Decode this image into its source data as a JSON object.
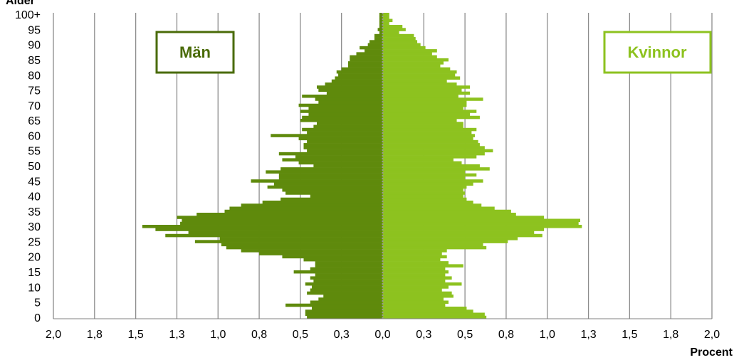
{
  "chart_data": {
    "type": "bar",
    "orientation": "horizontal",
    "subtype": "population-pyramid",
    "ylabel": "Ålder",
    "xlabel": "Procent",
    "x_tick_labels": [
      "2,0",
      "1,8",
      "1,5",
      "1,3",
      "1,0",
      "0,8",
      "0,5",
      "0,3",
      "0,0",
      "0,3",
      "0,5",
      "0,8",
      "1,0",
      "1,3",
      "1,5",
      "1,8",
      "2,0"
    ],
    "y_tick_labels": [
      "0",
      "5",
      "10",
      "15",
      "20",
      "25",
      "30",
      "35",
      "40",
      "45",
      "50",
      "55",
      "60",
      "65",
      "70",
      "75",
      "80",
      "85",
      "90",
      "95",
      "100+"
    ],
    "xlim": [
      -2.0,
      2.0
    ],
    "ages": [
      0,
      1,
      2,
      3,
      4,
      5,
      6,
      7,
      8,
      9,
      10,
      11,
      12,
      13,
      14,
      15,
      16,
      17,
      18,
      19,
      20,
      21,
      22,
      23,
      24,
      25,
      26,
      27,
      28,
      29,
      30,
      31,
      32,
      33,
      34,
      35,
      36,
      37,
      38,
      39,
      40,
      41,
      42,
      43,
      44,
      45,
      46,
      47,
      48,
      49,
      50,
      51,
      52,
      53,
      54,
      55,
      56,
      57,
      58,
      59,
      60,
      61,
      62,
      63,
      64,
      65,
      66,
      67,
      68,
      69,
      70,
      71,
      72,
      73,
      74,
      75,
      76,
      77,
      78,
      79,
      80,
      81,
      82,
      83,
      84,
      85,
      86,
      87,
      88,
      89,
      90,
      91,
      92,
      93,
      94,
      95,
      96,
      97,
      98,
      99,
      "100+"
    ],
    "grid": "vertical",
    "series": [
      {
        "name": "Män",
        "color": "#5f8a0c",
        "values": [
          0.46,
          0.47,
          0.47,
          0.43,
          0.59,
          0.44,
          0.39,
          0.36,
          0.46,
          0.44,
          0.43,
          0.47,
          0.42,
          0.44,
          0.41,
          0.54,
          0.44,
          0.41,
          0.41,
          0.48,
          0.61,
          0.75,
          0.86,
          0.95,
          0.98,
          1.14,
          0.99,
          1.32,
          1.18,
          1.38,
          1.46,
          1.23,
          1.22,
          1.25,
          1.13,
          0.96,
          0.93,
          0.86,
          0.73,
          0.62,
          0.44,
          0.59,
          0.61,
          0.7,
          0.66,
          0.8,
          0.63,
          0.63,
          0.71,
          0.62,
          0.42,
          0.51,
          0.61,
          0.53,
          0.63,
          0.46,
          0.48,
          0.48,
          0.46,
          0.51,
          0.68,
          0.46,
          0.49,
          0.42,
          0.4,
          0.5,
          0.49,
          0.45,
          0.5,
          0.45,
          0.51,
          0.39,
          0.41,
          0.49,
          0.34,
          0.39,
          0.4,
          0.35,
          0.31,
          0.29,
          0.27,
          0.28,
          0.25,
          0.21,
          0.21,
          0.2,
          0.2,
          0.16,
          0.11,
          0.14,
          0.09,
          0.08,
          0.05,
          0.05,
          0.02,
          0.03,
          0.02,
          0.02,
          0.02,
          0.02,
          0.02
        ]
      },
      {
        "name": "Kvinnor",
        "color": "#8dc21f",
        "values": [
          0.63,
          0.62,
          0.55,
          0.51,
          0.38,
          0.4,
          0.37,
          0.43,
          0.42,
          0.36,
          0.4,
          0.48,
          0.38,
          0.42,
          0.38,
          0.4,
          0.38,
          0.49,
          0.4,
          0.35,
          0.39,
          0.36,
          0.39,
          0.63,
          0.61,
          0.76,
          0.82,
          0.97,
          0.92,
          0.98,
          1.21,
          1.19,
          1.2,
          0.98,
          0.81,
          0.78,
          0.68,
          0.6,
          0.55,
          0.51,
          0.49,
          0.5,
          0.49,
          0.51,
          0.55,
          0.61,
          0.5,
          0.57,
          0.5,
          0.65,
          0.59,
          0.48,
          0.43,
          0.57,
          0.62,
          0.67,
          0.62,
          0.59,
          0.58,
          0.55,
          0.56,
          0.54,
          0.57,
          0.49,
          0.49,
          0.45,
          0.59,
          0.53,
          0.57,
          0.49,
          0.51,
          0.51,
          0.61,
          0.46,
          0.53,
          0.48,
          0.53,
          0.45,
          0.39,
          0.47,
          0.44,
          0.45,
          0.41,
          0.35,
          0.37,
          0.4,
          0.33,
          0.3,
          0.33,
          0.26,
          0.23,
          0.21,
          0.2,
          0.19,
          0.1,
          0.14,
          0.12,
          0.04,
          0.06,
          0.04,
          0.04
        ]
      }
    ]
  },
  "legend": {
    "men_label": "Män",
    "women_label": "Kvinnor"
  }
}
